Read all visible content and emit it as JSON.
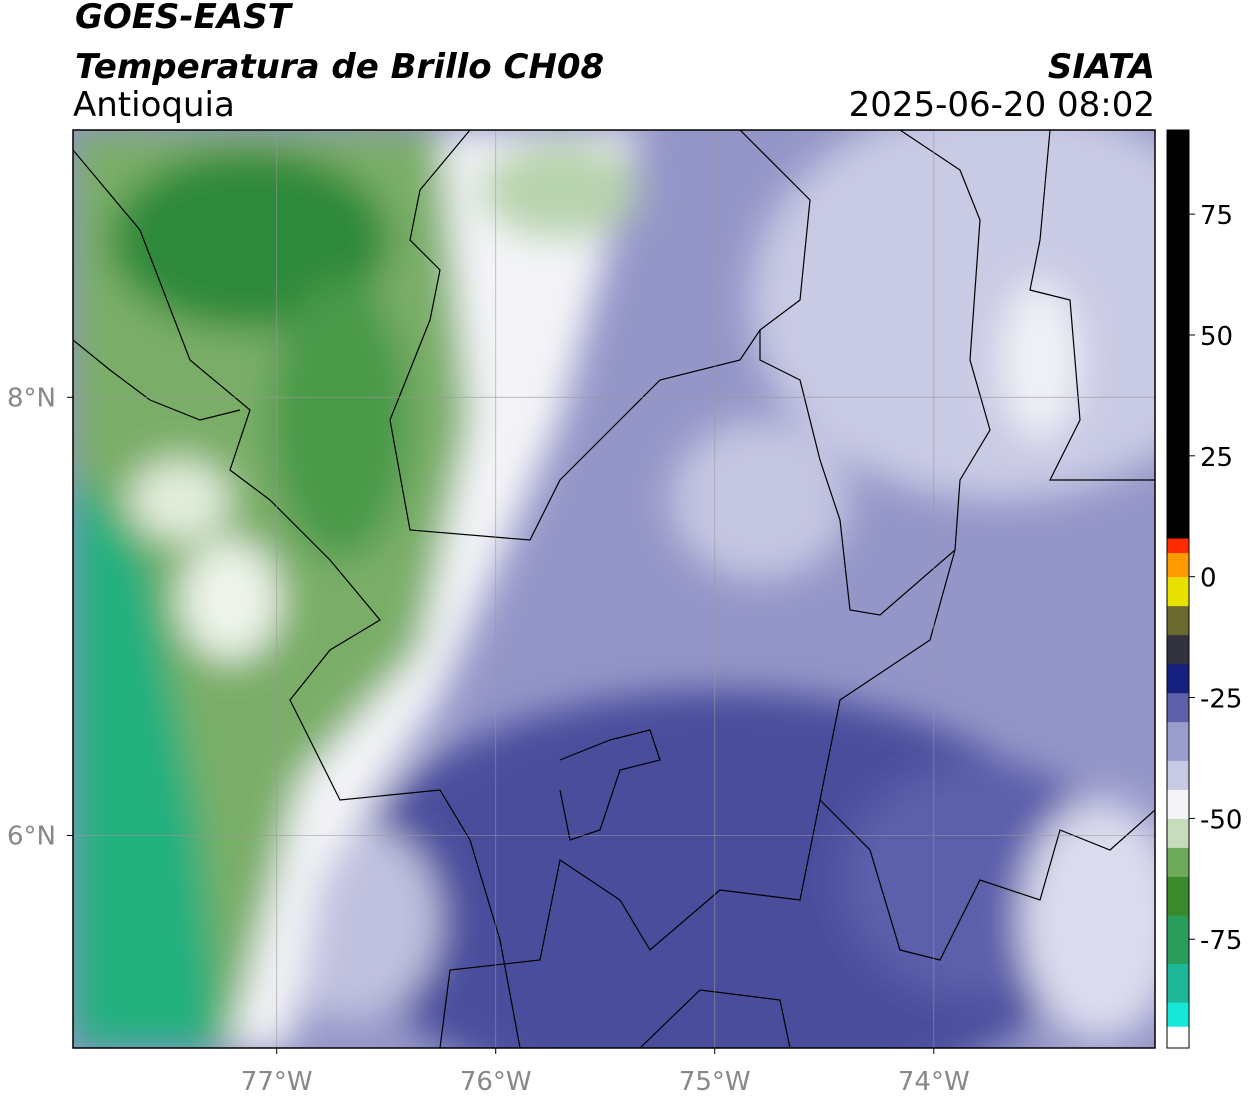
{
  "header": {
    "title": "GOES-EAST",
    "subtitle": "Temperatura de Brillo CH08",
    "region": "Antioquia",
    "source": "SIATA",
    "timestamp": "2025-06-20 08:02"
  },
  "map": {
    "xlim": [
      -77.93,
      -72.99
    ],
    "ylim": [
      5.03,
      9.22
    ],
    "xticks": [
      {
        "value": -77,
        "label": "77°W"
      },
      {
        "value": -76,
        "label": "76°W"
      },
      {
        "value": -75,
        "label": "75°W"
      },
      {
        "value": -74,
        "label": "74°W"
      }
    ],
    "yticks": [
      {
        "value": 8,
        "label": "8°N"
      },
      {
        "value": 6,
        "label": "6°N"
      }
    ],
    "grid": true
  },
  "colorbar": {
    "lim": [
      -97.5,
      92.4
    ],
    "ticks": [
      75,
      50,
      25,
      0,
      -25,
      -50,
      -75
    ],
    "levels": [
      -97.5,
      -93,
      -88,
      -80,
      -70,
      -62,
      -56,
      -50,
      -44,
      -38,
      -30,
      -24,
      -18,
      -12,
      -6,
      0,
      5,
      8,
      92.4
    ],
    "colors": [
      "#ffffff",
      "#17e8d8",
      "#1fb897",
      "#2a9d5a",
      "#3c8a2e",
      "#6fa95a",
      "#c6dcbc",
      "#f4f4f8",
      "#c8c9e4",
      "#9a9ccc",
      "#5e60aa",
      "#15207f",
      "#333340",
      "#6a6a30",
      "#e8e000",
      "#ff9a00",
      "#ff2a00",
      "#000000"
    ]
  }
}
